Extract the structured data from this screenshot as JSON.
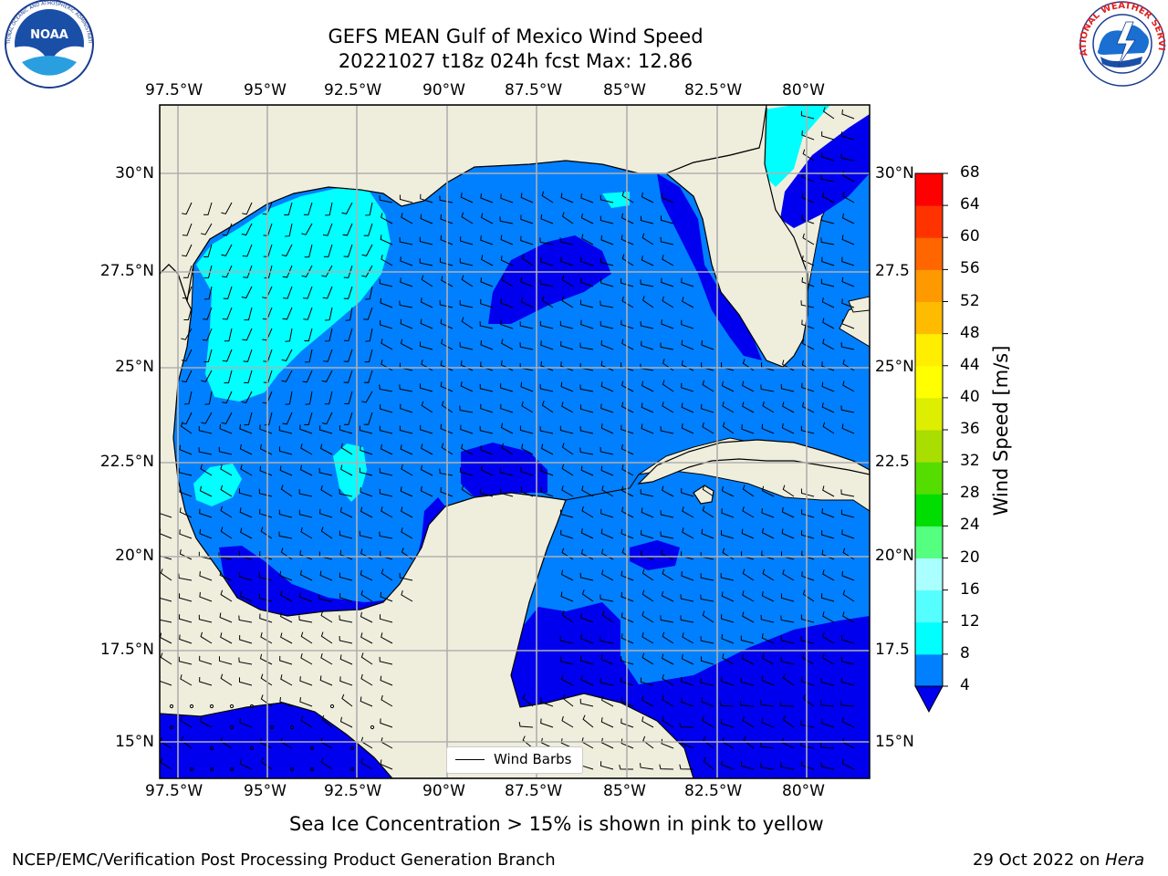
{
  "title": {
    "line1": "GEFS MEAN Gulf of Mexico Wind Speed",
    "line2": "20221027 t18z 024h fcst   Max: 12.86"
  },
  "axes": {
    "lon_labels": [
      "97.5°W",
      "95°W",
      "92.5°W",
      "90°W",
      "87.5°W",
      "85°W",
      "82.5°W",
      "80°W"
    ],
    "lat_labels": [
      "30°N",
      "27.5°N",
      "25°N",
      "22.5°N",
      "20°N",
      "17.5°N",
      "15°N"
    ],
    "lat_labels_right": [
      "30°N",
      "27.5",
      "25°N",
      "22.5",
      "20°N",
      "17.5",
      "15°N"
    ]
  },
  "colorbar": {
    "title": "Wind Speed [m/s]",
    "ticks": [
      "4",
      "8",
      "12",
      "16",
      "20",
      "24",
      "28",
      "32",
      "36",
      "40",
      "44",
      "48",
      "52",
      "56",
      "60",
      "64",
      "68"
    ],
    "colors": [
      "#0000ee",
      "#0080ff",
      "#00ffff",
      "#55ffff",
      "#aaffff",
      "#55ff80",
      "#00dd00",
      "#55dd00",
      "#aadd00",
      "#ddee00",
      "#ffff00",
      "#ffee00",
      "#ffbb00",
      "#ff9900",
      "#ff6600",
      "#ff3300",
      "#ff0000"
    ]
  },
  "legend": {
    "label": "Wind Barbs"
  },
  "note": "Sea Ice Concentration > 15% is shown in pink to yellow",
  "footer": {
    "left": "NCEP/EMC/Verification Post Processing Product Generation Branch",
    "right_prefix": "29 Oct 2022 on ",
    "right_host": "Hera"
  },
  "logos": {
    "noaa_text": "NOAA",
    "noaa_ring": "NATIONAL OCEANIC AND ATMOSPHERIC ADMINISTRATION",
    "nws_ring": "NATIONAL WEATHER SERVICE"
  },
  "colors": {
    "land": "#efeedd",
    "ocean_low": "#0000ee",
    "ocean_mid": "#0080ff",
    "ocean_high": "#00ffff"
  }
}
